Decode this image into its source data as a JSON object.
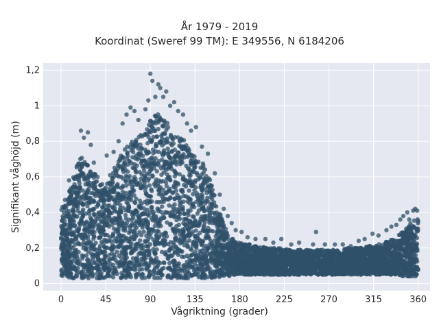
{
  "chart_data": {
    "type": "scatter",
    "title_lines": [
      "År 1979 - 2019",
      "Koordinat (Sweref 99 TM): E 349556, N 6184206"
    ],
    "xlabel": "Vågriktning (grader)",
    "ylabel": "Signifikant våghöjd (m)",
    "xlim": [
      -18,
      372
    ],
    "ylim": [
      -0.04,
      1.24
    ],
    "x_ticks": [
      0,
      45,
      90,
      135,
      180,
      225,
      270,
      315,
      360
    ],
    "x_tick_labels": [
      "0",
      "45",
      "90",
      "135",
      "180",
      "225",
      "270",
      "315",
      "360"
    ],
    "y_ticks": [
      0,
      0.2,
      0.4,
      0.6,
      0.8,
      1.0,
      1.2
    ],
    "y_tick_labels": [
      "0",
      "0,2",
      "0,4",
      "0,6",
      "0,8",
      "1",
      "1,2"
    ],
    "grid": true,
    "colors": {
      "background": "#e5e8f0",
      "grid": "#ffffff",
      "marker": "#2f5068"
    },
    "series": [
      {
        "x": [
          0,
          5,
          10,
          15,
          20,
          25,
          30,
          35,
          40,
          45,
          50,
          55,
          60,
          65,
          70,
          75,
          80,
          85,
          90,
          95,
          100,
          105,
          110,
          115,
          120,
          125,
          130,
          135,
          140,
          145,
          150,
          155,
          160,
          165,
          170,
          175,
          180,
          185,
          190,
          195,
          200,
          210,
          220,
          230,
          240,
          250,
          260,
          270,
          280,
          290,
          300,
          310,
          320,
          330,
          340,
          345,
          350,
          355,
          358,
          360
        ],
        "y_low": [
          0.04,
          0.04,
          0.03,
          0.03,
          0.03,
          0.03,
          0.03,
          0.03,
          0.03,
          0.03,
          0.03,
          0.03,
          0.03,
          0.03,
          0.03,
          0.03,
          0.03,
          0.03,
          0.03,
          0.03,
          0.03,
          0.03,
          0.03,
          0.03,
          0.03,
          0.03,
          0.03,
          0.03,
          0.03,
          0.03,
          0.03,
          0.03,
          0.03,
          0.04,
          0.04,
          0.05,
          0.05,
          0.05,
          0.05,
          0.05,
          0.05,
          0.05,
          0.05,
          0.05,
          0.05,
          0.05,
          0.05,
          0.05,
          0.05,
          0.05,
          0.05,
          0.05,
          0.05,
          0.05,
          0.05,
          0.04,
          0.04,
          0.04,
          0.04,
          0.04
        ],
        "y_high": [
          0.42,
          0.48,
          0.55,
          0.65,
          0.72,
          0.7,
          0.66,
          0.62,
          0.6,
          0.55,
          0.62,
          0.68,
          0.72,
          0.76,
          0.8,
          0.82,
          0.84,
          0.88,
          0.92,
          0.95,
          0.96,
          0.92,
          0.88,
          0.86,
          0.83,
          0.8,
          0.76,
          0.74,
          0.7,
          0.66,
          0.6,
          0.5,
          0.4,
          0.32,
          0.27,
          0.24,
          0.23,
          0.22,
          0.22,
          0.21,
          0.21,
          0.2,
          0.2,
          0.19,
          0.19,
          0.19,
          0.19,
          0.19,
          0.19,
          0.2,
          0.2,
          0.21,
          0.22,
          0.24,
          0.27,
          0.3,
          0.32,
          0.36,
          0.38,
          0.36
        ]
      }
    ],
    "outliers": [
      {
        "x": 4,
        "y": 0.47
      },
      {
        "x": 8,
        "y": 0.58
      },
      {
        "x": 15,
        "y": 0.6
      },
      {
        "x": 20,
        "y": 0.86
      },
      {
        "x": 23,
        "y": 0.82
      },
      {
        "x": 27,
        "y": 0.85
      },
      {
        "x": 30,
        "y": 0.78
      },
      {
        "x": 33,
        "y": 0.68
      },
      {
        "x": 46,
        "y": 0.72
      },
      {
        "x": 53,
        "y": 0.74
      },
      {
        "x": 58,
        "y": 0.8
      },
      {
        "x": 62,
        "y": 0.9
      },
      {
        "x": 66,
        "y": 0.95
      },
      {
        "x": 70,
        "y": 0.99
      },
      {
        "x": 74,
        "y": 0.97
      },
      {
        "x": 78,
        "y": 0.92
      },
      {
        "x": 85,
        "y": 0.98
      },
      {
        "x": 88,
        "y": 1.03
      },
      {
        "x": 90,
        "y": 1.18
      },
      {
        "x": 92,
        "y": 1.14
      },
      {
        "x": 95,
        "y": 1.05
      },
      {
        "x": 98,
        "y": 1.12
      },
      {
        "x": 100,
        "y": 1.1
      },
      {
        "x": 103,
        "y": 1.05
      },
      {
        "x": 106,
        "y": 1.08
      },
      {
        "x": 110,
        "y": 1.0
      },
      {
        "x": 114,
        "y": 1.02
      },
      {
        "x": 118,
        "y": 0.97
      },
      {
        "x": 123,
        "y": 0.95
      },
      {
        "x": 127,
        "y": 0.9
      },
      {
        "x": 131,
        "y": 0.86
      },
      {
        "x": 136,
        "y": 0.88
      },
      {
        "x": 142,
        "y": 0.77
      },
      {
        "x": 148,
        "y": 0.73
      },
      {
        "x": 155,
        "y": 0.62
      },
      {
        "x": 160,
        "y": 0.5
      },
      {
        "x": 164,
        "y": 0.42
      },
      {
        "x": 168,
        "y": 0.38
      },
      {
        "x": 172,
        "y": 0.34
      },
      {
        "x": 176,
        "y": 0.3
      },
      {
        "x": 182,
        "y": 0.29
      },
      {
        "x": 188,
        "y": 0.26
      },
      {
        "x": 196,
        "y": 0.25
      },
      {
        "x": 206,
        "y": 0.25
      },
      {
        "x": 214,
        "y": 0.23
      },
      {
        "x": 222,
        "y": 0.25
      },
      {
        "x": 232,
        "y": 0.22
      },
      {
        "x": 240,
        "y": 0.23
      },
      {
        "x": 254,
        "y": 0.22
      },
      {
        "x": 257,
        "y": 0.29
      },
      {
        "x": 266,
        "y": 0.22
      },
      {
        "x": 276,
        "y": 0.22
      },
      {
        "x": 284,
        "y": 0.22
      },
      {
        "x": 292,
        "y": 0.21
      },
      {
        "x": 300,
        "y": 0.24
      },
      {
        "x": 306,
        "y": 0.25
      },
      {
        "x": 314,
        "y": 0.28
      },
      {
        "x": 320,
        "y": 0.27
      },
      {
        "x": 328,
        "y": 0.3
      },
      {
        "x": 333,
        "y": 0.32
      },
      {
        "x": 338,
        "y": 0.33
      },
      {
        "x": 342,
        "y": 0.36
      },
      {
        "x": 345,
        "y": 0.38
      },
      {
        "x": 349,
        "y": 0.4
      },
      {
        "x": 351,
        "y": 0.36
      },
      {
        "x": 355,
        "y": 0.41
      },
      {
        "x": 357,
        "y": 0.42
      },
      {
        "x": 359,
        "y": 0.41
      },
      {
        "x": 360,
        "y": 0.35
      }
    ]
  }
}
